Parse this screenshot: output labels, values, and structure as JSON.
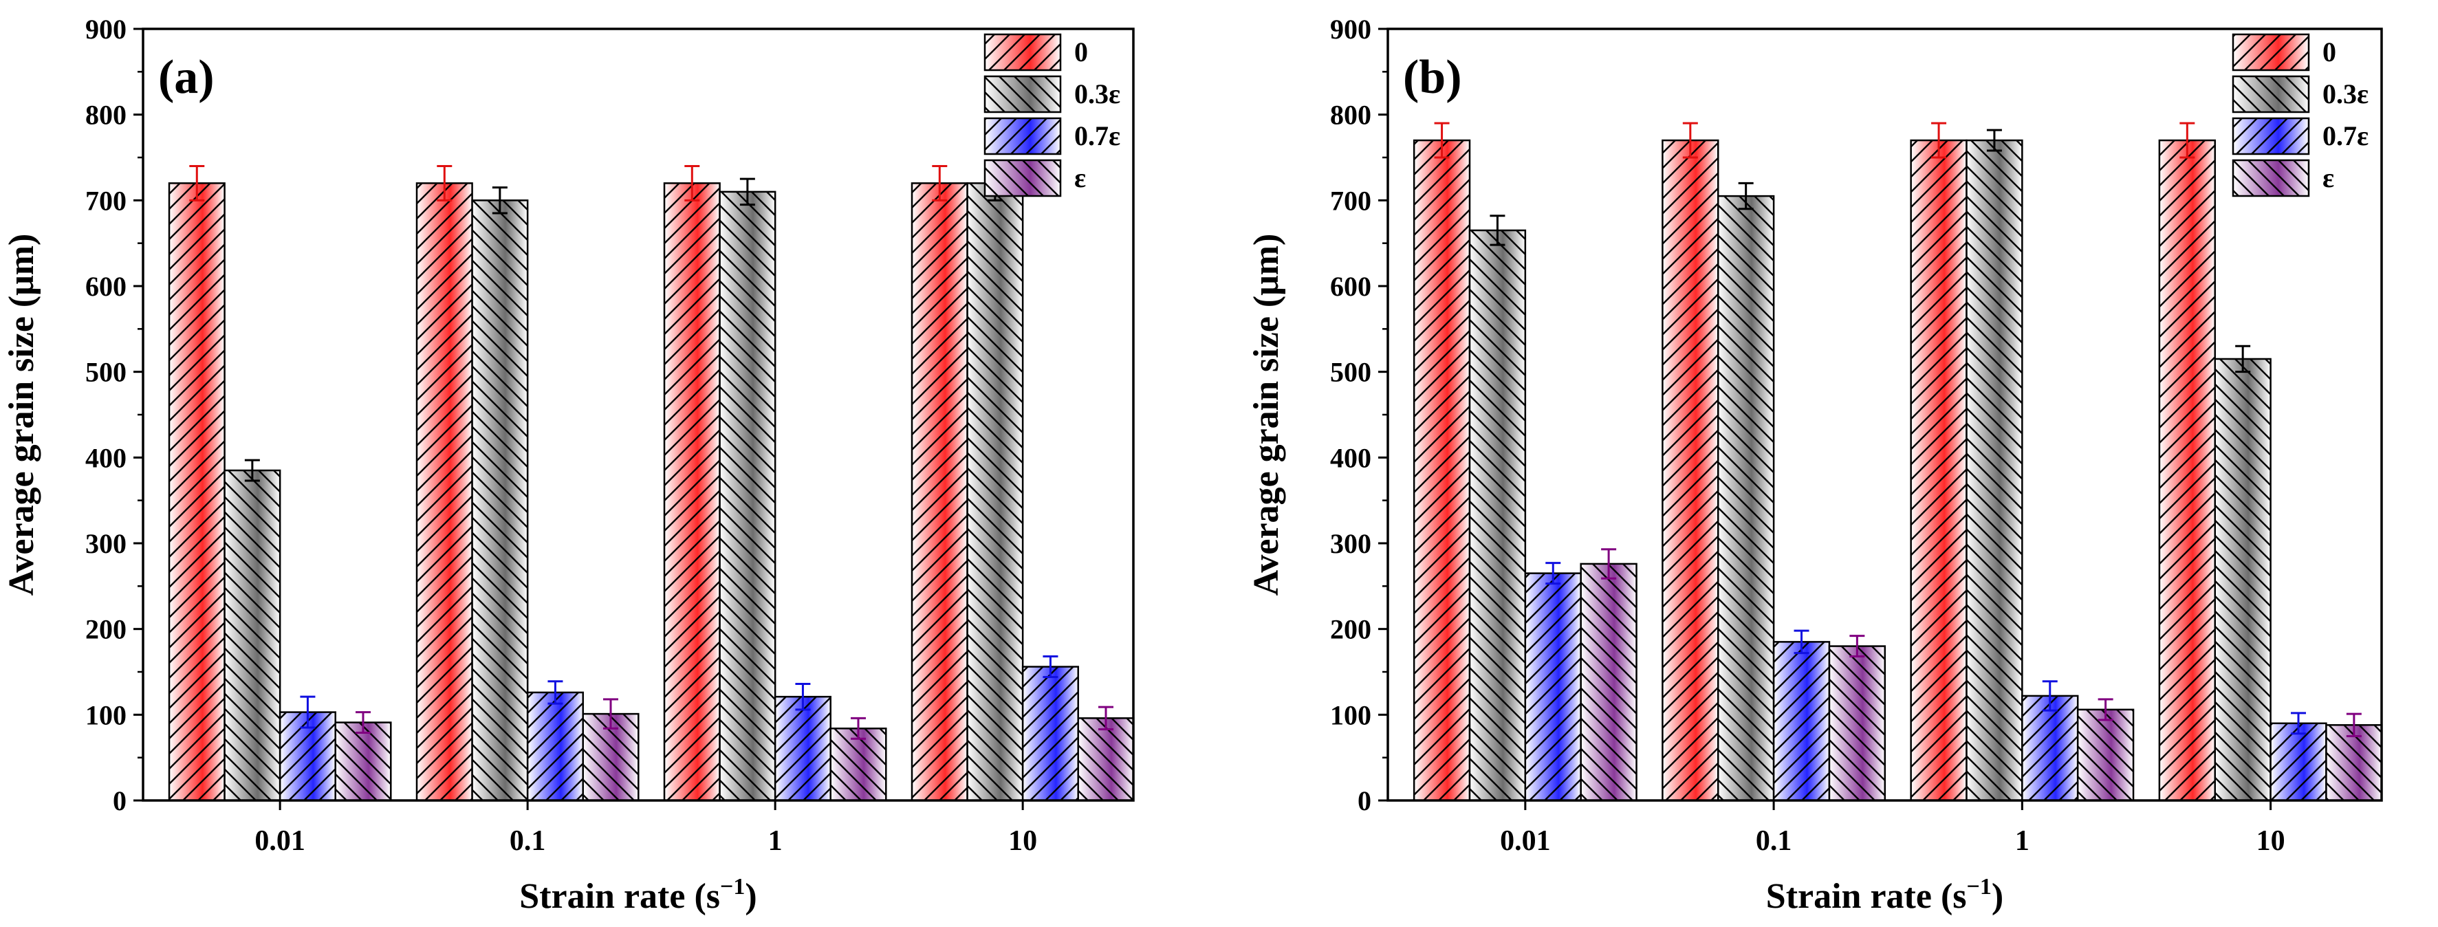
{
  "chart_data": [
    {
      "type": "bar",
      "panel_label": "(a)",
      "categories": [
        "0.01",
        "0.1",
        "1",
        "10"
      ],
      "series": [
        {
          "name": "0",
          "values": [
            720,
            720,
            720,
            720
          ],
          "errors": [
            20,
            20,
            20,
            20
          ]
        },
        {
          "name": "0.3ε",
          "values": [
            385,
            700,
            710,
            720
          ],
          "errors": [
            12,
            15,
            15,
            20
          ]
        },
        {
          "name": "0.7ε",
          "values": [
            103,
            126,
            121,
            156
          ],
          "errors": [
            18,
            13,
            15,
            12
          ]
        },
        {
          "name": "ε",
          "values": [
            91,
            101,
            84,
            96
          ],
          "errors": [
            12,
            17,
            12,
            13
          ]
        }
      ],
      "xlabel": "Strain rate (s",
      "xlabel_sup": "−1",
      "xlabel_tail": ")",
      "ylabel": "Average grain size (μm)",
      "ylim": [
        0,
        900
      ],
      "yticks": [
        "0",
        "100",
        "200",
        "300",
        "400",
        "500",
        "600",
        "700",
        "800",
        "900"
      ],
      "legend_position": "top-right"
    },
    {
      "type": "bar",
      "panel_label": "(b)",
      "categories": [
        "0.01",
        "0.1",
        "1",
        "10"
      ],
      "series": [
        {
          "name": "0",
          "values": [
            770,
            770,
            770,
            770
          ],
          "errors": [
            20,
            20,
            20,
            20
          ]
        },
        {
          "name": "0.3ε",
          "values": [
            665,
            705,
            770,
            515
          ],
          "errors": [
            17,
            15,
            12,
            15
          ]
        },
        {
          "name": "0.7ε",
          "values": [
            265,
            185,
            122,
            90
          ],
          "errors": [
            12,
            13,
            17,
            12
          ]
        },
        {
          "name": "ε",
          "values": [
            276,
            180,
            106,
            88
          ],
          "errors": [
            17,
            12,
            12,
            13
          ]
        }
      ],
      "xlabel": "Strain rate (s",
      "xlabel_sup": "−1",
      "xlabel_tail": ")",
      "ylabel": "Average grain size (μm)",
      "ylim": [
        0,
        900
      ],
      "yticks": [
        "0",
        "100",
        "200",
        "300",
        "400",
        "500",
        "600",
        "700",
        "800",
        "900"
      ],
      "legend_position": "top-right"
    }
  ],
  "style": {
    "series_colors": [
      "#ff2a2a",
      "#6e6e6e",
      "#2626ff",
      "#8a3a9a"
    ],
    "error_colors": [
      "#e01010",
      "#000000",
      "#1010e0",
      "#800080"
    ]
  }
}
